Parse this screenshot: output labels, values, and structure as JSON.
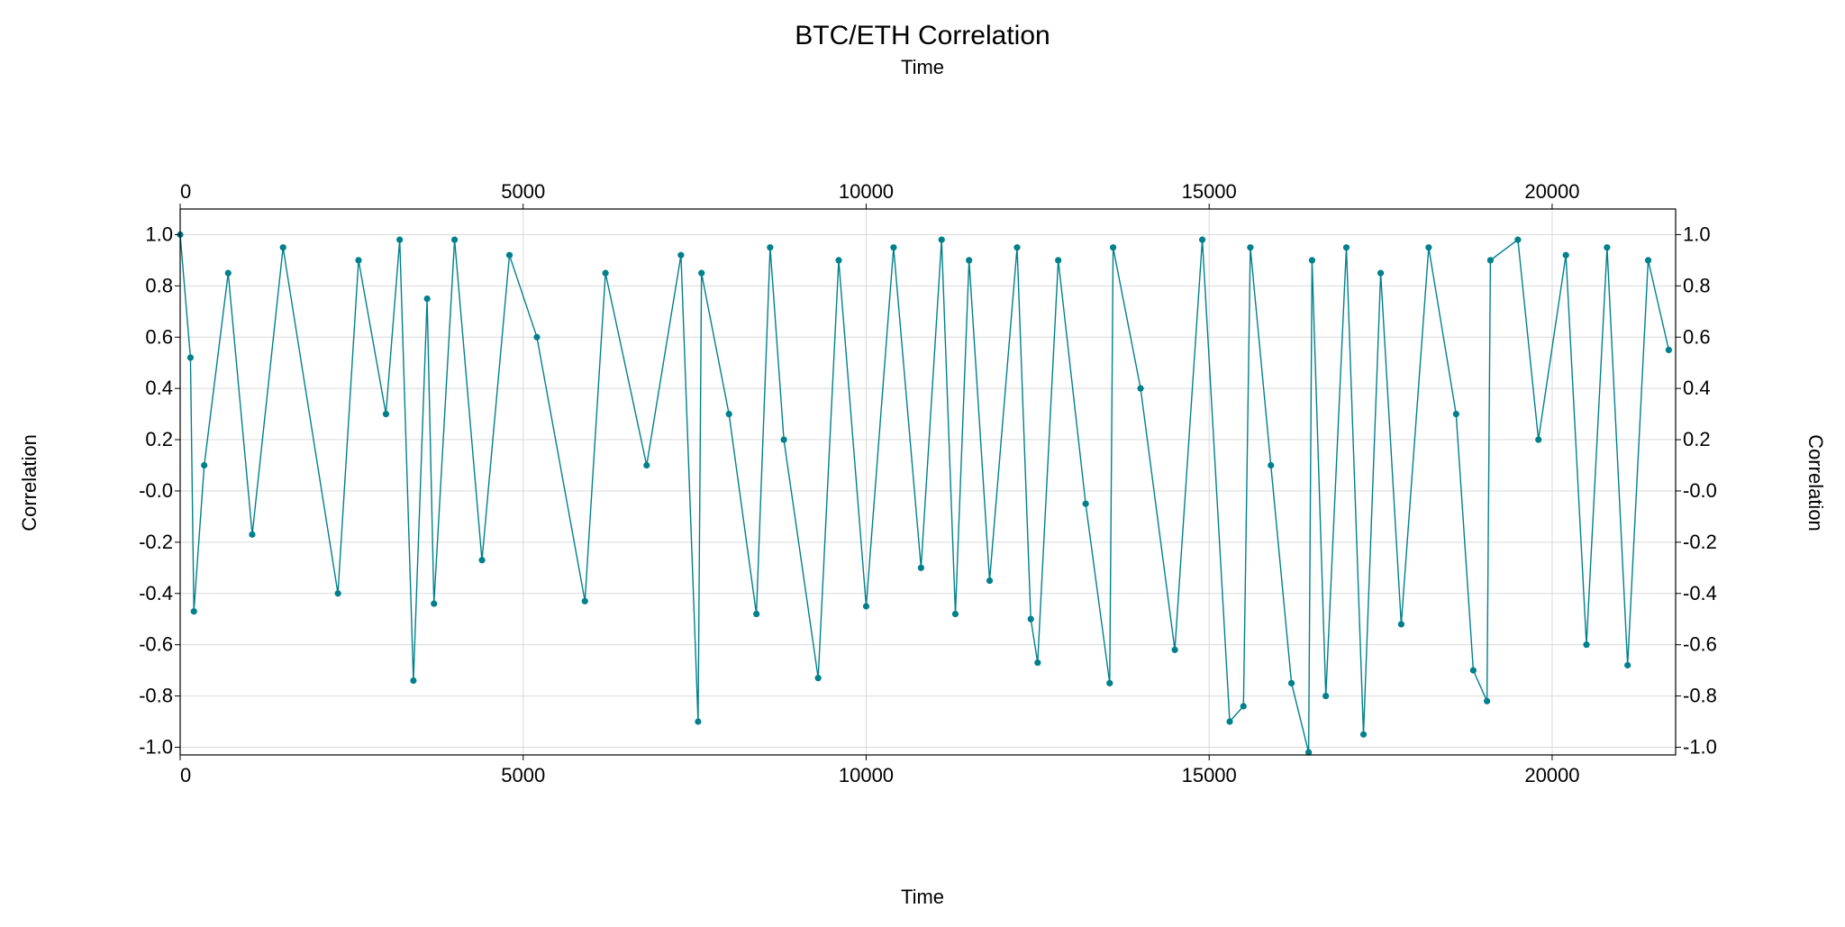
{
  "colors": {
    "series": "#00808c",
    "grid": "#d9d9d9",
    "axis": "#000000",
    "background": "#ffffff"
  },
  "chart_data": {
    "type": "line",
    "title": "BTC/ETH Correlation",
    "xlabel": "Time",
    "ylabel": "Correlation",
    "xlim": [
      0,
      21800
    ],
    "ylim": [
      -1.03,
      1.1
    ],
    "grid": true,
    "markers": true,
    "x_ticks": [
      0,
      5000,
      10000,
      15000,
      20000
    ],
    "y_ticks": [
      "-1.0",
      "-0.8",
      "-0.6",
      "-0.4",
      "-0.2",
      "-0.0",
      "0.2",
      "0.4",
      "0.6",
      "0.8",
      "1.0"
    ],
    "y_tick_values": [
      -1.0,
      -0.8,
      -0.6,
      -0.4,
      -0.2,
      0.0,
      0.2,
      0.4,
      0.6,
      0.8,
      1.0
    ],
    "series": [
      {
        "x": [
          0,
          150,
          200,
          350,
          700,
          1050,
          1500,
          2300,
          2600,
          3000,
          3200,
          3400,
          3600,
          3700,
          4000,
          4400,
          4800,
          5200,
          5900,
          6200,
          6800,
          7300,
          7550,
          7600,
          8000,
          8400,
          8600,
          8800,
          9300,
          9600,
          10000,
          10400,
          10800,
          11100,
          11300,
          11500,
          11800,
          12200,
          12400,
          12500,
          12800,
          13200,
          13550,
          13600,
          14000,
          14500,
          14900,
          15300,
          15500,
          15600,
          15900,
          16200,
          16450,
          16500,
          16700,
          17000,
          17250,
          17500,
          17800,
          18200,
          18600,
          18850,
          19050,
          19100,
          19500,
          19800,
          20200,
          20500,
          20800,
          21100,
          21400,
          21700
        ],
        "y": [
          1.0,
          0.52,
          -0.47,
          0.1,
          0.85,
          -0.17,
          0.95,
          -0.4,
          0.9,
          0.3,
          0.98,
          -0.74,
          0.75,
          -0.44,
          0.98,
          -0.27,
          0.92,
          0.6,
          -0.43,
          0.85,
          0.1,
          0.92,
          -0.9,
          0.85,
          0.3,
          -0.48,
          0.95,
          0.2,
          -0.73,
          0.9,
          -0.45,
          0.95,
          -0.3,
          0.98,
          -0.48,
          0.9,
          -0.35,
          0.95,
          -0.5,
          -0.67,
          0.9,
          -0.05,
          -0.75,
          0.95,
          0.4,
          -0.62,
          0.98,
          -0.9,
          -0.84,
          0.95,
          0.1,
          -0.75,
          -1.02,
          0.9,
          -0.8,
          0.95,
          -0.95,
          0.85,
          -0.52,
          0.95,
          0.3,
          -0.7,
          -0.82,
          0.9,
          0.98,
          0.2,
          0.92,
          -0.6,
          0.95,
          -0.68,
          0.9,
          0.55
        ]
      }
    ]
  }
}
